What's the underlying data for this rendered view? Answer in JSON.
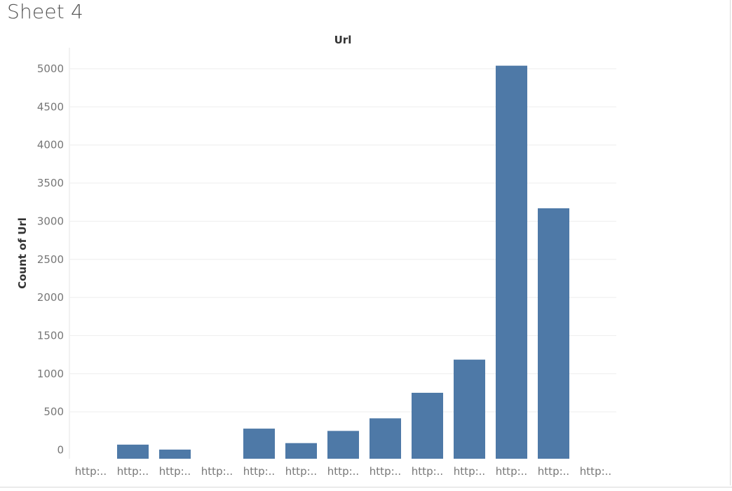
{
  "sheet": {
    "title": "Sheet 4"
  },
  "colors": {
    "bar": "#4e79a7",
    "grid": "#eeeeee",
    "axis_text": "#777777"
  },
  "chart_data": {
    "type": "bar",
    "title": "Url",
    "xlabel": "",
    "ylabel": "Count of Url",
    "categories": [
      "http:..",
      "http:..",
      "http:..",
      "http:..",
      "http:..",
      "http:..",
      "http:..",
      "http:..",
      "http:..",
      "http:..",
      "http:..",
      "http:..",
      "http:.."
    ],
    "values": [
      0,
      70,
      5,
      0,
      280,
      90,
      250,
      415,
      750,
      1185,
      5040,
      3170,
      0
    ],
    "yticks": [
      0,
      500,
      1000,
      1500,
      2000,
      2500,
      3000,
      3500,
      4000,
      4500,
      5000
    ],
    "ylim": [
      -100,
      5300
    ],
    "grid": true,
    "legend": "none"
  }
}
